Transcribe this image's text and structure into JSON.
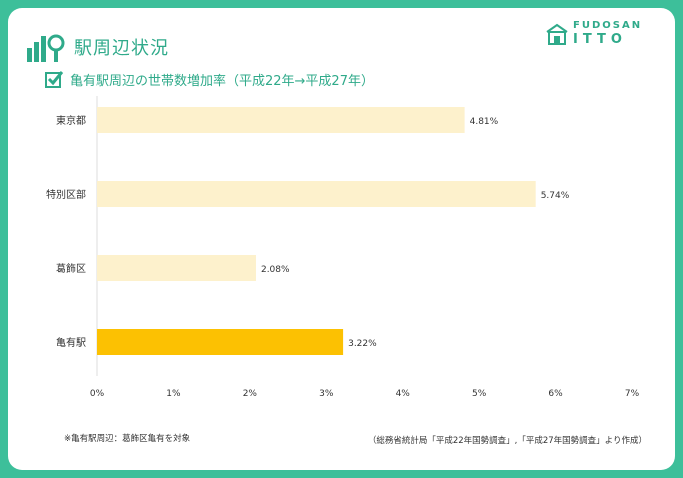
{
  "header": {
    "section_title": "駅周辺状況",
    "brand_top": "FUDOSAN",
    "brand_bottom": "ITTO",
    "section_icon": "bar-chart-magnifier-icon",
    "brand_icon": "house-logo-icon"
  },
  "chart_title": "亀有駅周辺の世帯数増加率（平成22年→平成27年）",
  "chart_data": {
    "type": "bar",
    "orientation": "horizontal",
    "categories": [
      "東京都",
      "特別区部",
      "葛飾区",
      "亀有駅"
    ],
    "values": [
      4.81,
      5.74,
      2.08,
      3.22
    ],
    "value_labels": [
      "4.81%",
      "5.74%",
      "2.08%",
      "3.22%"
    ],
    "highlight_category": "亀有駅",
    "xlim": [
      0,
      7
    ],
    "x_ticks": [
      "0%",
      "1%",
      "2%",
      "3%",
      "4%",
      "5%",
      "6%",
      "7%"
    ],
    "grid": false,
    "colors": {
      "bar": "#fdf1cc",
      "highlight": "#fcc102",
      "axis": "#dddddd",
      "text": "#333333"
    }
  },
  "notes": {
    "left": "※亀有駅周辺：葛飾区亀有を対象",
    "right": "（総務省統計局「平成22年国勢調査」,「平成27年国勢調査」より作成）"
  },
  "colors": {
    "background": "#3dbf9a",
    "accent": "#2faa8a",
    "card": "#ffffff"
  }
}
